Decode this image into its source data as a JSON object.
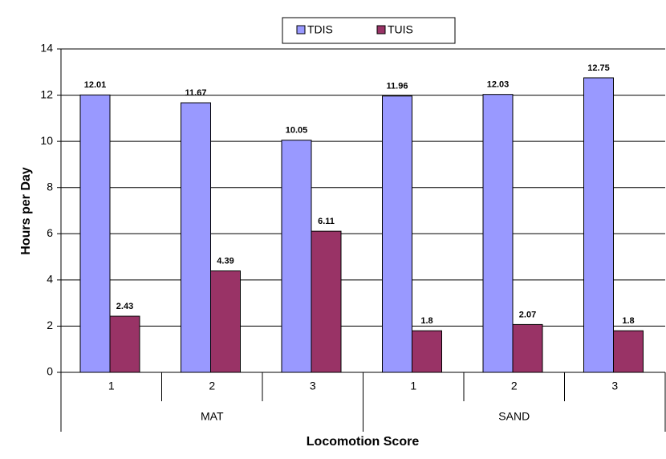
{
  "chart_data": {
    "type": "bar",
    "categories": [
      "1",
      "2",
      "3",
      "1",
      "2",
      "3"
    ],
    "groups": [
      "MAT",
      "SAND"
    ],
    "series": [
      {
        "name": "TDIS",
        "color": "#9999ff",
        "values": [
          12.01,
          11.67,
          10.05,
          11.96,
          12.03,
          12.75
        ]
      },
      {
        "name": "TUIS",
        "color": "#993366",
        "values": [
          2.43,
          4.39,
          6.11,
          1.8,
          2.07,
          1.8
        ]
      }
    ],
    "ylabel": "Hours per Day",
    "xlabel": "Locomotion Score",
    "ylim": [
      0,
      14
    ],
    "yticks": [
      0,
      2,
      4,
      6,
      8,
      10,
      12,
      14
    ],
    "grid": true,
    "legend": "top"
  }
}
